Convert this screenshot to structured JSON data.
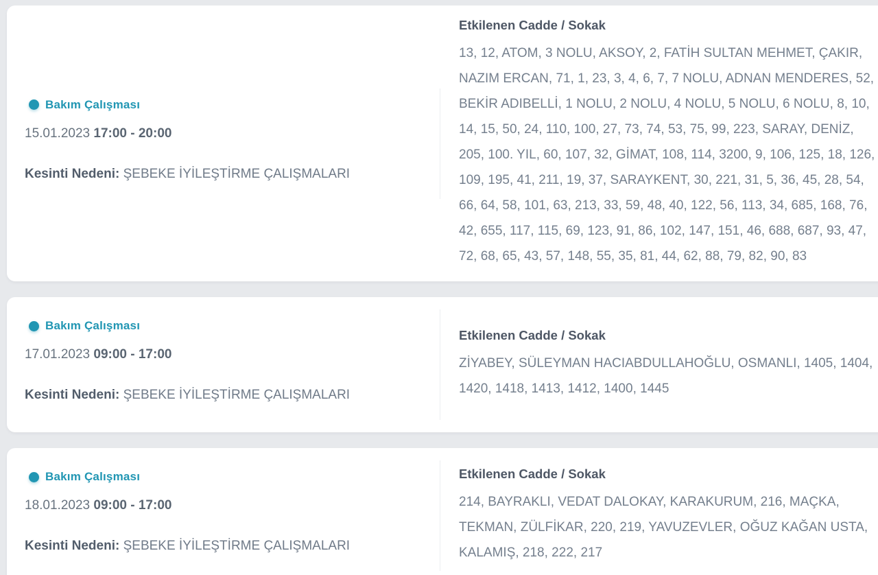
{
  "page": {
    "background_color": "#e7e9ec",
    "card_color": "#ffffff",
    "accent_color": "#2196b3"
  },
  "cards": [
    {
      "type_label": "Bakım Çalışması",
      "date": "15.01.2023",
      "time": "17:00 - 20:00",
      "reason_label": "Kesinti Nedeni:",
      "reason_value": "ŞEBEKE İYİLEŞTİRME ÇALIŞMALARI",
      "streets_header": "Etkilenen Cadde / Sokak",
      "streets": "13, 12, ATOM, 3 NOLU, AKSOY, 2, FATİH SULTAN MEHMET, ÇAKIR, NAZIM ERCAN, 71, 1, 23, 3, 4, 6, 7, 7 NOLU, ADNAN MENDERES, 52, BEKİR ADIBELLİ, 1 NOLU, 2 NOLU, 4 NOLU, 5 NOLU, 6 NOLU, 8, 10, 14, 15, 50, 24, 110, 100, 27, 73, 74, 53, 75, 99, 223, SARAY, DENİZ, 205, 100. YIL, 60, 107, 32, GİMAT, 108, 114, 3200, 9, 106, 125, 18, 126, 109, 195, 41, 211, 19, 37, SARAYKENT, 30, 221, 31, 5, 36, 45, 28, 54, 66, 64, 58, 101, 63, 213, 33, 59, 48, 40, 122, 56, 113, 34, 685, 168, 76, 42, 655, 117, 115, 69, 123, 91, 86, 102, 147, 151, 46, 688, 687, 93, 47, 72, 68, 65, 43, 57, 148, 55, 35, 81, 44, 62, 88, 79, 82, 90, 83"
    },
    {
      "type_label": "Bakım Çalışması",
      "date": "17.01.2023",
      "time": "09:00 - 17:00",
      "reason_label": "Kesinti Nedeni:",
      "reason_value": "ŞEBEKE İYİLEŞTİRME ÇALIŞMALARI",
      "streets_header": "Etkilenen Cadde / Sokak",
      "streets": "ZİYABEY, SÜLEYMAN HACIABDULLAHOĞLU, OSMANLI, 1405, 1404, 1420, 1418, 1413, 1412, 1400, 1445"
    },
    {
      "type_label": "Bakım Çalışması",
      "date": "18.01.2023",
      "time": "09:00 - 17:00",
      "reason_label": "Kesinti Nedeni:",
      "reason_value": "ŞEBEKE İYİLEŞTİRME ÇALIŞMALARI",
      "streets_header": "Etkilenen Cadde / Sokak",
      "streets": "214, BAYRAKLI, VEDAT DALOKAY, KARAKURUM, 216, MAÇKA, TEKMAN, ZÜLFİKAR, 220, 219, YAVUZEVLER, OĞUZ KAĞAN USTA, KALAMIŞ, 218, 222, 217"
    }
  ]
}
